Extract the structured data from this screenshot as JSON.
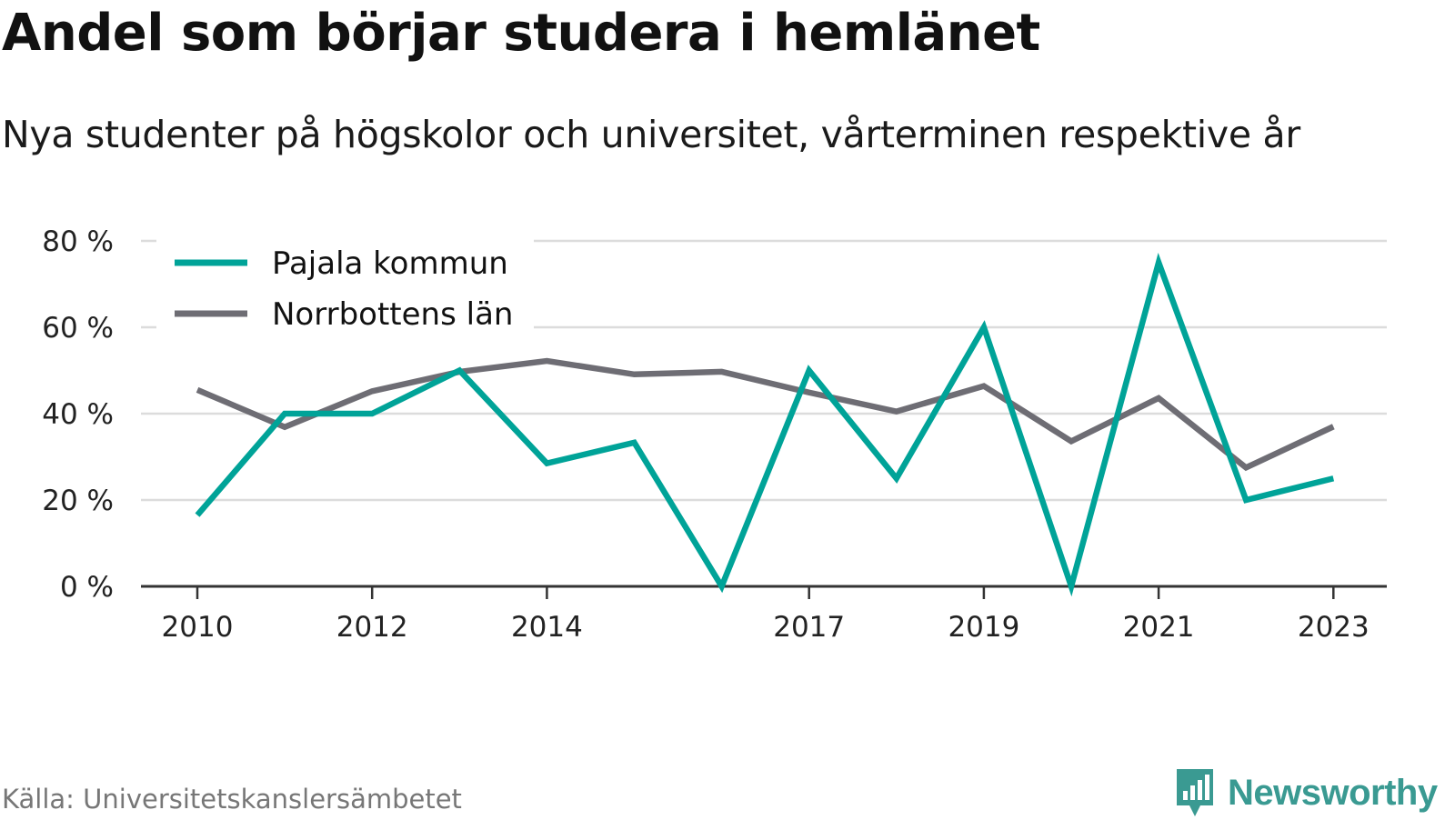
{
  "header": {
    "title": "Andel som börjar studera i hemlänet",
    "subtitle": "Nya studenter på högskolor och universitet, vårterminen respektive år"
  },
  "footer": {
    "source": "Källa: Universitetskanslersämbetet",
    "brand": "Newsworthy",
    "brand_icon": "bar-chart-speech-bubble-icon",
    "brand_color": "#3a9a92"
  },
  "chart_data": {
    "type": "line",
    "x": [
      2010,
      2011,
      2012,
      2013,
      2014,
      2015,
      2016,
      2017,
      2018,
      2019,
      2020,
      2021,
      2022,
      2023
    ],
    "x_ticks": [
      "2010",
      "2012",
      "2014",
      "2017",
      "2019",
      "2021",
      "2023"
    ],
    "y_ticks": [
      "0 %",
      "20 %",
      "40 %",
      "60 %",
      "80 %"
    ],
    "ylim": [
      0,
      80
    ],
    "grid": true,
    "legend_position": "top-left",
    "series": [
      {
        "name": "Pajala kommun",
        "color": "#00a398",
        "values": [
          16.5,
          40,
          40,
          50,
          28.5,
          33.3,
          0,
          50,
          25,
          60,
          0,
          75,
          20,
          25
        ]
      },
      {
        "name": "Norrbottens län",
        "color": "#6e6d74",
        "values": [
          45.5,
          36.9,
          45.2,
          49.7,
          52.2,
          49.1,
          49.7,
          44.9,
          40.5,
          46.4,
          33.6,
          43.6,
          27.5,
          37
        ]
      }
    ]
  }
}
